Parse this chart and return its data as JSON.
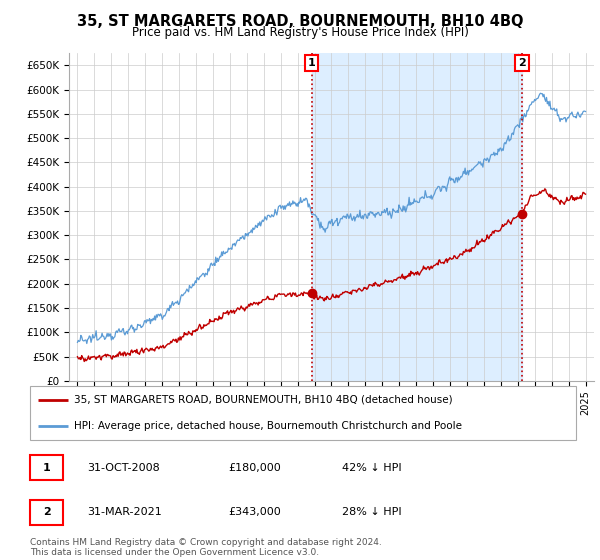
{
  "title": "35, ST MARGARETS ROAD, BOURNEMOUTH, BH10 4BQ",
  "subtitle": "Price paid vs. HM Land Registry's House Price Index (HPI)",
  "ylabel_ticks": [
    "£0",
    "£50K",
    "£100K",
    "£150K",
    "£200K",
    "£250K",
    "£300K",
    "£350K",
    "£400K",
    "£450K",
    "£500K",
    "£550K",
    "£600K",
    "£650K"
  ],
  "ytick_values": [
    0,
    50000,
    100000,
    150000,
    200000,
    250000,
    300000,
    350000,
    400000,
    450000,
    500000,
    550000,
    600000,
    650000
  ],
  "ylim": [
    0,
    675000
  ],
  "hpi_color": "#5b9bd5",
  "price_color": "#c00000",
  "shade_color": "#ddeeff",
  "marker1_date": 2008.83,
  "marker1_price": 180000,
  "marker1_label": "1",
  "marker2_date": 2021.25,
  "marker2_price": 343000,
  "marker2_label": "2",
  "legend_entry1_display": "35, ST MARGARETS ROAD, BOURNEMOUTH, BH10 4BQ (detached house)",
  "legend_entry2": "HPI: Average price, detached house, Bournemouth Christchurch and Poole",
  "note1_label": "1",
  "note1_date": "31-OCT-2008",
  "note1_price": "£180,000",
  "note1_hpi": "42% ↓ HPI",
  "note2_label": "2",
  "note2_date": "31-MAR-2021",
  "note2_price": "£343,000",
  "note2_hpi": "28% ↓ HPI",
  "footer": "Contains HM Land Registry data © Crown copyright and database right 2024.\nThis data is licensed under the Open Government Licence v3.0.",
  "background_color": "#ffffff",
  "grid_color": "#cccccc"
}
